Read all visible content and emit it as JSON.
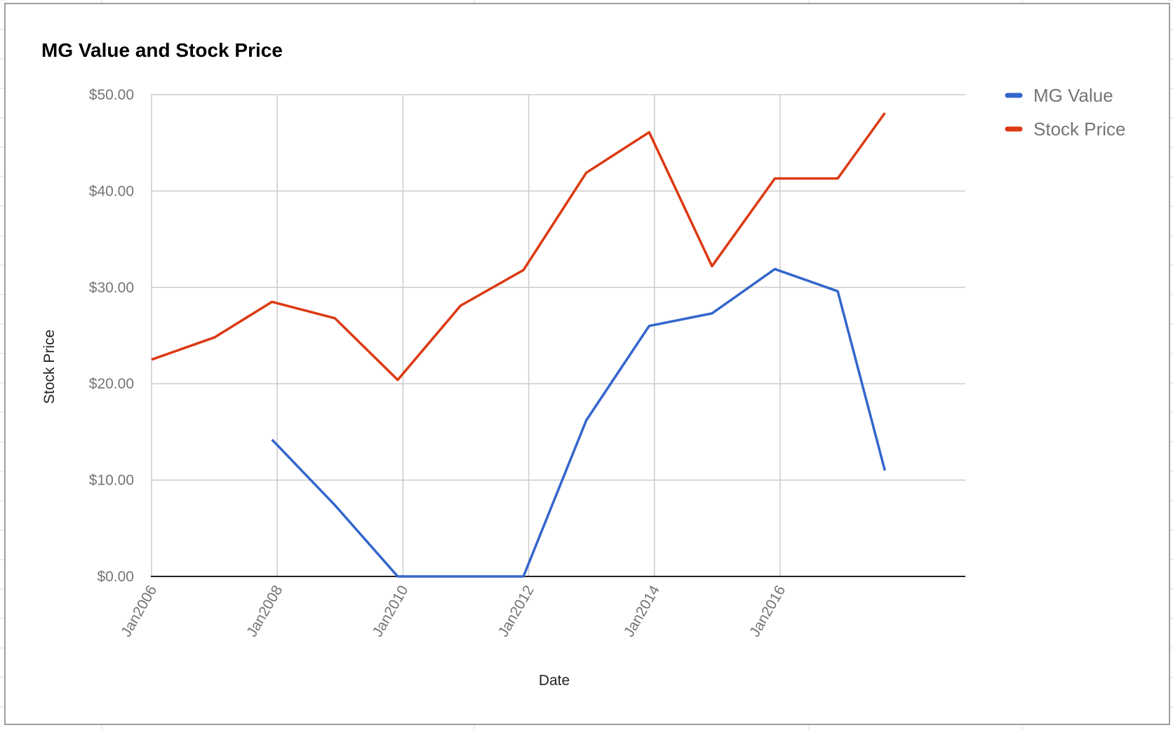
{
  "chart_data": {
    "type": "line",
    "title": "MG Value and Stock Price",
    "xlabel": "Date",
    "ylabel": "Stock Price",
    "ylim": [
      0,
      50
    ],
    "y_ticks": [
      "$0.00",
      "$10.00",
      "$20.00",
      "$30.00",
      "$40.00",
      "$50.00"
    ],
    "x_ticks": [
      "Jan2006",
      "Jan2008",
      "Jan2010",
      "Jan2012",
      "Jan2014",
      "Jan2016"
    ],
    "x_range": [
      "2006-01",
      "2017-09"
    ],
    "grid": true,
    "legend_position": "right",
    "series": [
      {
        "name": "MG Value",
        "color": "#3366cc",
        "points": [
          {
            "x": "2007-12",
            "y": 14.2
          },
          {
            "x": "2008-12",
            "y": 7.4
          },
          {
            "x": "2009-12",
            "y": 0.0
          },
          {
            "x": "2011-12",
            "y": 0.0
          },
          {
            "x": "2012-12",
            "y": 16.2
          },
          {
            "x": "2013-12",
            "y": 26.0
          },
          {
            "x": "2014-12",
            "y": 27.3
          },
          {
            "x": "2015-12",
            "y": 31.9
          },
          {
            "x": "2016-12",
            "y": 29.6
          },
          {
            "x": "2017-09",
            "y": 11.0
          }
        ]
      },
      {
        "name": "Stock Price",
        "color": "#dc3912",
        "points": [
          {
            "x": "2006-01",
            "y": 22.5
          },
          {
            "x": "2007-01",
            "y": 24.8
          },
          {
            "x": "2007-12",
            "y": 28.5
          },
          {
            "x": "2008-12",
            "y": 26.8
          },
          {
            "x": "2009-12",
            "y": 20.4
          },
          {
            "x": "2010-12",
            "y": 28.1
          },
          {
            "x": "2011-12",
            "y": 31.8
          },
          {
            "x": "2012-12",
            "y": 41.9
          },
          {
            "x": "2013-12",
            "y": 46.1
          },
          {
            "x": "2014-12",
            "y": 32.2
          },
          {
            "x": "2015-12",
            "y": 41.3
          },
          {
            "x": "2016-12",
            "y": 41.3
          },
          {
            "x": "2017-09",
            "y": 48.1
          }
        ]
      }
    ]
  }
}
